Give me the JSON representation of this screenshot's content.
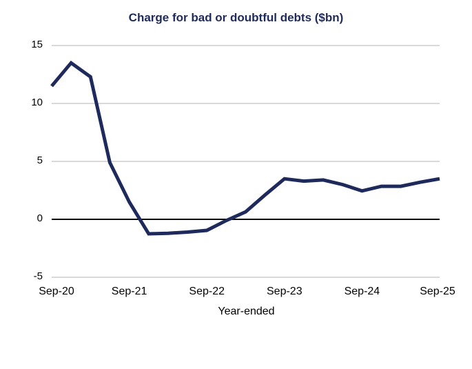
{
  "chart_data": {
    "type": "line",
    "title": "Charge for bad or doubtful debts ($bn)",
    "xlabel": "Year-ended",
    "ylabel": "",
    "ylim": [
      -5,
      15
    ],
    "yticks": [
      15,
      10,
      5,
      0,
      -5
    ],
    "xtick_labels": [
      "Sep-20",
      "Sep-21",
      "Sep-22",
      "Sep-23",
      "Sep-24",
      "Sep-25"
    ],
    "grid": true,
    "legend": "none",
    "x": [
      "Sep-20",
      "Dec-20",
      "Mar-21",
      "Jun-21",
      "Sep-21",
      "Dec-21",
      "Mar-22",
      "Jun-22",
      "Sep-22",
      "Dec-22",
      "Mar-23",
      "Jun-23",
      "Sep-23",
      "Dec-23",
      "Mar-24",
      "Jun-24",
      "Sep-24",
      "Dec-24",
      "Mar-25",
      "Jun-25",
      "Sep-25"
    ],
    "series": [
      {
        "name": "Charge for bad or doubtful debts",
        "color": "#1f2a5c",
        "values": [
          11.5,
          13.5,
          12.3,
          4.9,
          1.5,
          -1.25,
          -1.2,
          -1.1,
          -0.95,
          -0.1,
          0.65,
          2.1,
          3.5,
          3.3,
          3.4,
          3.0,
          2.45,
          2.85,
          2.85,
          3.2,
          3.5
        ]
      }
    ]
  },
  "colors": {
    "line": "#1f2a5c",
    "title": "#1f2a5c",
    "grid": "#d9d9d9",
    "zero_axis": "#000000"
  }
}
